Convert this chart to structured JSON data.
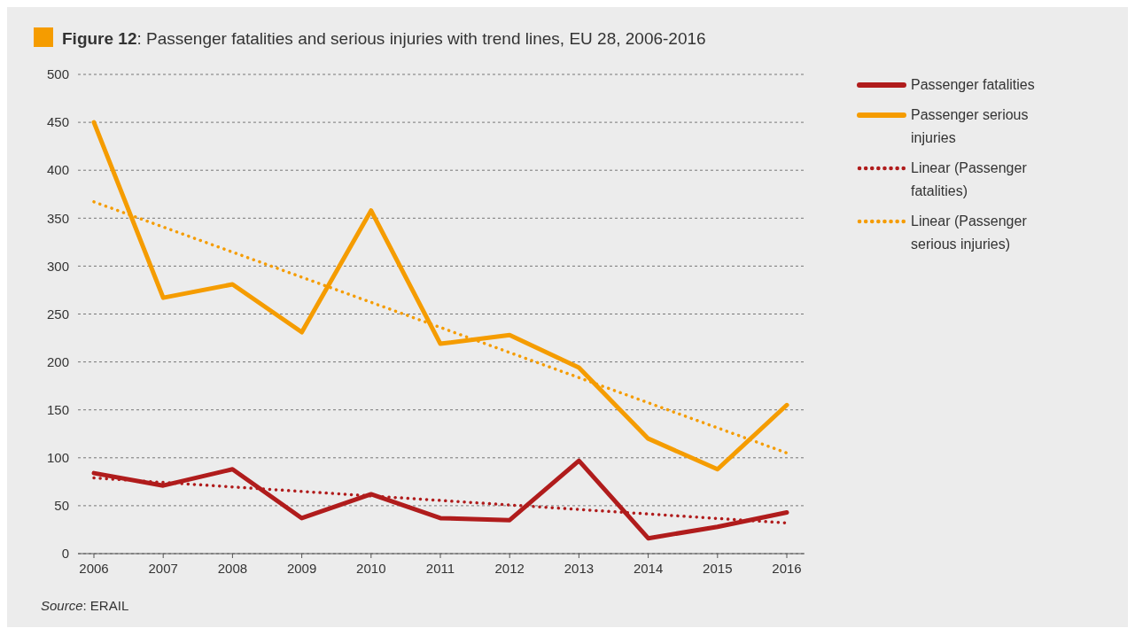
{
  "chart_data": {
    "type": "line",
    "title": "Figure 12: Passenger fatalities and serious injuries with trend lines, EU 28, 2006-2016",
    "categories": [
      "2006",
      "2007",
      "2008",
      "2009",
      "2010",
      "2011",
      "2012",
      "2013",
      "2014",
      "2015",
      "2016"
    ],
    "series": [
      {
        "name": "Passenger fatalities",
        "color": "#b01c1c",
        "values": [
          84,
          71,
          88,
          37,
          62,
          37,
          35,
          97,
          16,
          28,
          43
        ]
      },
      {
        "name": "Passenger serious injuries",
        "color": "#f59c00",
        "values": [
          450,
          267,
          281,
          231,
          358,
          219,
          228,
          194,
          120,
          88,
          155
        ]
      },
      {
        "name": "Linear (Passenger fatalities)",
        "color": "#b01c1c",
        "line_style": "dotted",
        "values": [
          79,
          null,
          null,
          null,
          null,
          null,
          null,
          null,
          null,
          null,
          32
        ]
      },
      {
        "name": "Linear (Passenger serious injuries)",
        "color": "#f59c00",
        "line_style": "dotted",
        "values": [
          367,
          null,
          null,
          null,
          null,
          null,
          null,
          null,
          null,
          null,
          105
        ]
      }
    ],
    "ylim": [
      0,
      500
    ],
    "yticks": [
      0,
      50,
      100,
      150,
      200,
      250,
      300,
      350,
      400,
      450,
      500
    ],
    "grid": "y",
    "legend": "top right",
    "marker": "none",
    "line_style": "solid",
    "annotations": [
      "Source: ERAIL"
    ]
  }
}
